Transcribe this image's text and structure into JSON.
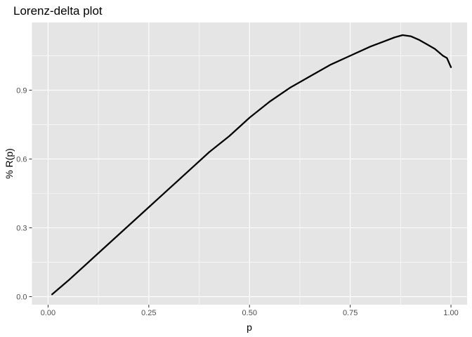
{
  "chart_data": {
    "type": "line",
    "title": "Lorenz-delta plot",
    "xlabel": "p",
    "ylabel": "% R(p)",
    "xlim": [
      -0.04,
      1.04
    ],
    "ylim": [
      -0.035,
      1.195
    ],
    "grid": true,
    "legend": "none",
    "colors": {
      "panel": "#e5e5e5",
      "grid_major": "#ffffff",
      "line": "#000000"
    },
    "x_ticks": [
      {
        "value": 0.0,
        "label": "0.00"
      },
      {
        "value": 0.25,
        "label": "0.25"
      },
      {
        "value": 0.5,
        "label": "0.50"
      },
      {
        "value": 0.75,
        "label": "0.75"
      },
      {
        "value": 1.0,
        "label": "1.00"
      }
    ],
    "y_ticks": [
      {
        "value": 0.0,
        "label": "0.0"
      },
      {
        "value": 0.3,
        "label": "0.3"
      },
      {
        "value": 0.6,
        "label": "0.6"
      },
      {
        "value": 0.9,
        "label": "0.9"
      }
    ],
    "series": [
      {
        "x": [
          0.01,
          0.05,
          0.1,
          0.15,
          0.2,
          0.25,
          0.3,
          0.35,
          0.4,
          0.45,
          0.5,
          0.55,
          0.6,
          0.65,
          0.7,
          0.75,
          0.8,
          0.83,
          0.86,
          0.88,
          0.9,
          0.92,
          0.94,
          0.96,
          0.98,
          0.99,
          1.0
        ],
        "y": [
          0.01,
          0.07,
          0.15,
          0.23,
          0.31,
          0.39,
          0.47,
          0.55,
          0.63,
          0.7,
          0.78,
          0.85,
          0.91,
          0.96,
          1.01,
          1.05,
          1.09,
          1.11,
          1.13,
          1.14,
          1.135,
          1.12,
          1.1,
          1.08,
          1.05,
          1.04,
          1.0
        ]
      }
    ]
  }
}
